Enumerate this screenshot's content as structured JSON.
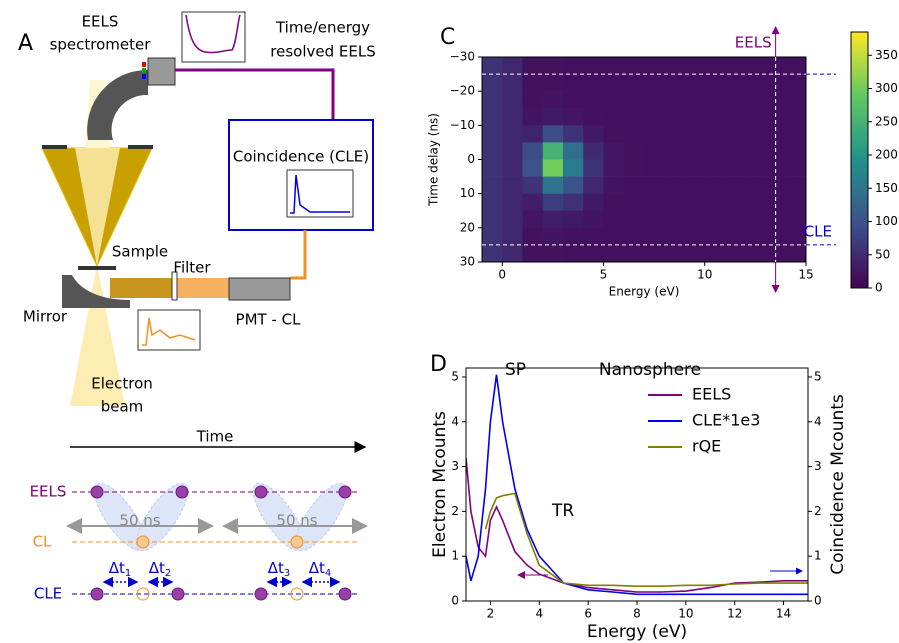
{
  "panel_labels": {
    "a": "A",
    "c": "C",
    "d": "D"
  },
  "diagram": {
    "spectrometer": [
      "EELS",
      "spectrometer"
    ],
    "resolved": [
      "Time/energy",
      "resolved EELS"
    ],
    "coincidence": "Coincidence (CLE)",
    "sample": "Sample",
    "filter": "Filter",
    "mirror": "Mirror",
    "pmt": "PMT - CL",
    "beam": [
      "Electron",
      "beam"
    ]
  },
  "timeline": {
    "axis": "Time",
    "rows": [
      "EELS",
      "CL",
      "CLE"
    ],
    "gap_labels": [
      "50 ns",
      "50 ns"
    ],
    "delays": [
      {
        "symbol": "Δt",
        "index": "1"
      },
      {
        "symbol": "Δt",
        "index": "2"
      },
      {
        "symbol": "Δt",
        "index": "3"
      },
      {
        "symbol": "Δt",
        "index": "4"
      }
    ]
  },
  "chart_data": [
    {
      "type": "heatmap",
      "xlabel": "Energy (eV)",
      "ylabel": "Time delay (ns)",
      "colormap": "viridis",
      "x_edges": [
        -1,
        0,
        1,
        2,
        3,
        4,
        5,
        6,
        7,
        8,
        9,
        10,
        11,
        12,
        13,
        14,
        15
      ],
      "y_edges": [
        -30,
        -25,
        -20,
        -15,
        -10,
        -5,
        0,
        5,
        10,
        15,
        20,
        25,
        30
      ],
      "z": [
        [
          60,
          45,
          20,
          20,
          18,
          18,
          18,
          18,
          18,
          18,
          18,
          18,
          18,
          18,
          18,
          18
        ],
        [
          60,
          45,
          20,
          20,
          18,
          18,
          18,
          18,
          18,
          18,
          18,
          18,
          18,
          18,
          18,
          18
        ],
        [
          60,
          45,
          20,
          22,
          18,
          18,
          18,
          18,
          18,
          18,
          18,
          18,
          18,
          18,
          18,
          18
        ],
        [
          60,
          45,
          22,
          30,
          25,
          20,
          18,
          18,
          18,
          18,
          18,
          18,
          18,
          18,
          18,
          18
        ],
        [
          60,
          45,
          40,
          90,
          60,
          30,
          20,
          18,
          18,
          18,
          18,
          18,
          18,
          18,
          18,
          18
        ],
        [
          60,
          45,
          90,
          250,
          140,
          50,
          25,
          20,
          18,
          18,
          18,
          18,
          18,
          18,
          18,
          18
        ],
        [
          60,
          45,
          100,
          300,
          160,
          60,
          25,
          20,
          18,
          18,
          18,
          18,
          18,
          18,
          18,
          18
        ],
        [
          60,
          45,
          60,
          150,
          100,
          45,
          22,
          18,
          18,
          18,
          18,
          18,
          18,
          18,
          18,
          18
        ],
        [
          60,
          45,
          35,
          70,
          55,
          30,
          20,
          18,
          18,
          18,
          18,
          18,
          18,
          18,
          18,
          18
        ],
        [
          60,
          45,
          25,
          35,
          30,
          22,
          18,
          18,
          18,
          18,
          18,
          18,
          18,
          18,
          18,
          18
        ],
        [
          60,
          45,
          20,
          22,
          20,
          18,
          18,
          18,
          18,
          18,
          18,
          18,
          18,
          18,
          18,
          18
        ],
        [
          60,
          45,
          20,
          20,
          18,
          18,
          18,
          18,
          18,
          18,
          18,
          18,
          18,
          18,
          18,
          18
        ]
      ],
      "xlim": [
        -1,
        15
      ],
      "xticks": [
        0,
        5,
        10,
        15
      ],
      "ylim": [
        -30,
        30
      ],
      "y_inverted": true,
      "yticks": [
        {
          "value": -30,
          "label": "−30"
        },
        {
          "value": -20,
          "label": "−20"
        },
        {
          "value": -10,
          "label": "−10"
        },
        0,
        10,
        20,
        30
      ],
      "zlim": [
        0,
        385
      ],
      "zticks": [
        0,
        50,
        100,
        150,
        200,
        250,
        300,
        350
      ],
      "hlines": [
        -25,
        25
      ],
      "vline": 13.5,
      "line_color": "#ffffff",
      "line_labels": [
        {
          "text": "EELS",
          "color": "#800080"
        },
        {
          "text": "CLE",
          "color": "#0000cc"
        }
      ]
    },
    {
      "type": "line",
      "title": "Nanosphere",
      "xlabel": "Energy (eV)",
      "ylabel": "Electron Mcounts",
      "y2label": "Coincidence Mcounts",
      "annotations": [
        "SP",
        "TR"
      ],
      "legend": "upper right",
      "x": [
        1,
        1.2,
        1.5,
        1.8,
        2,
        2.25,
        2.5,
        3,
        3.5,
        4,
        5,
        6,
        7,
        8,
        9,
        10,
        11,
        12,
        13,
        14,
        15
      ],
      "series": [
        {
          "name": "EELS",
          "color": "#800080",
          "values": [
            3.2,
            2.0,
            1.2,
            1.0,
            1.8,
            2.1,
            1.8,
            1.1,
            0.8,
            0.6,
            0.4,
            0.3,
            0.25,
            0.2,
            0.2,
            0.22,
            0.3,
            0.4,
            0.42,
            0.45,
            0.45
          ]
        },
        {
          "name": "CLE*1e3",
          "color": "#0000ee",
          "axis": "y2",
          "values": [
            1.0,
            0.45,
            1.0,
            2.5,
            4.0,
            5.05,
            4.0,
            2.5,
            1.6,
            1.0,
            0.4,
            0.25,
            0.2,
            0.15,
            0.15,
            0.15,
            0.15,
            0.15,
            0.15,
            0.15,
            0.15
          ]
        },
        {
          "name": "rQE",
          "color": "#808000",
          "values": [
            null,
            null,
            null,
            1.6,
            2.0,
            2.3,
            2.35,
            2.4,
            1.5,
            0.8,
            0.4,
            0.35,
            0.35,
            0.33,
            0.33,
            0.35,
            0.35,
            0.38,
            0.4,
            0.4,
            0.4
          ]
        }
      ],
      "xlim": [
        1,
        15
      ],
      "xticks": [
        2,
        4,
        6,
        8,
        10,
        12,
        14
      ],
      "ylim": [
        0,
        5.2
      ],
      "yticks": [
        0,
        1,
        2,
        3,
        4,
        5
      ],
      "y2lim": [
        0,
        5.2
      ],
      "y2ticks": [
        0,
        1,
        2,
        3,
        4,
        5
      ]
    }
  ]
}
